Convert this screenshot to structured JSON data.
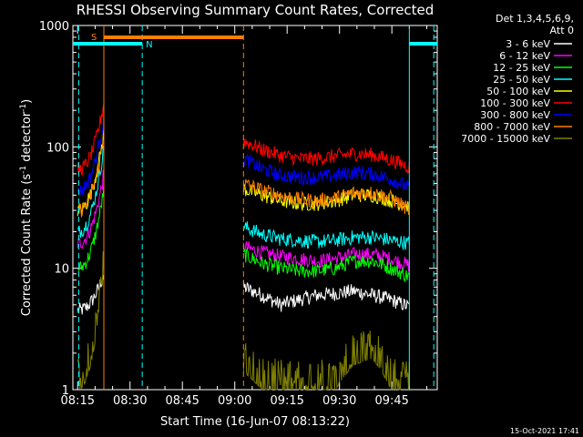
{
  "chart_data": {
    "type": "line",
    "title": "RHESSI Observing Summary Count Rates, Corrected",
    "xlabel": "Start Time (16-Jun-07 08:13:22)",
    "ylabel_main": "Corrected Count Rate (s",
    "ylabel_sup1": "-1",
    "ylabel_mid": " detector",
    "ylabel_sup2": "-1",
    "ylabel_end": ")",
    "yscale": "log",
    "ylim": [
      1,
      1000
    ],
    "xlim_minutes": [
      -1.37,
      103
    ],
    "xtick_labels": [
      "08:15",
      "08:30",
      "08:45",
      "09:00",
      "09:15",
      "09:30",
      "09:45"
    ],
    "xtick_minutes": [
      0,
      15,
      30,
      45,
      60,
      75,
      90
    ],
    "ytick_labels": [
      "1",
      "10",
      "100",
      "1000"
    ],
    "ytick_values": [
      1,
      10,
      100,
      1000
    ],
    "legend_header": [
      "Det 1,3,4,5,6,9,",
      "Att 0"
    ],
    "legend_position": "right",
    "timestamp": "15-Oct-2021 17:41",
    "segments_minutes": [
      [
        0,
        7.5
      ],
      [
        47.5,
        95
      ]
    ],
    "series": [
      {
        "name": "3 - 6 keV",
        "color": "#ffffff",
        "seg1": [
          4.5,
          5,
          6,
          9
        ],
        "seg2": [
          7,
          6,
          5,
          5.5,
          6,
          6.2,
          6.5,
          6,
          5.5,
          4.8
        ]
      },
      {
        "name": "6 - 12 keV",
        "color": "#ff00ff",
        "seg1": [
          16,
          17,
          25,
          60
        ],
        "seg2": [
          15,
          13.5,
          12.5,
          12,
          11.5,
          12,
          13,
          13,
          12,
          10.5
        ]
      },
      {
        "name": "12 - 25 keV",
        "color": "#00ff00",
        "seg1": [
          10,
          11,
          16,
          45
        ],
        "seg2": [
          13,
          11,
          10,
          9.5,
          9.5,
          10,
          11.5,
          11.5,
          10,
          8.5
        ]
      },
      {
        "name": "25 - 50 keV",
        "color": "#00ffff",
        "seg1": [
          20,
          22,
          40,
          100
        ],
        "seg2": [
          22,
          19,
          17.5,
          17,
          16.5,
          17,
          18,
          18,
          17,
          16
        ]
      },
      {
        "name": "50 - 100 keV",
        "color": "#ffff00",
        "seg1": [
          30,
          32,
          55,
          130
        ],
        "seg2": [
          45,
          40,
          36,
          34,
          34,
          36,
          40,
          40,
          36,
          32
        ]
      },
      {
        "name": "100 - 300 keV",
        "color": "#ff0000",
        "seg1": [
          65,
          68,
          100,
          230
        ],
        "seg2": [
          112,
          95,
          85,
          80,
          80,
          84,
          88,
          86,
          78,
          68
        ]
      },
      {
        "name": "300 - 800 keV",
        "color": "#0000ff",
        "seg1": [
          43,
          45,
          70,
          175
        ],
        "seg2": [
          80,
          66,
          58,
          56,
          56,
          58,
          62,
          60,
          54,
          46
        ]
      },
      {
        "name": "800 - 7000 keV",
        "color": "#ff8000",
        "seg1": [
          30,
          31,
          50,
          120
        ],
        "seg2": [
          50,
          44,
          40,
          37,
          36,
          38,
          42,
          42,
          38,
          30
        ]
      },
      {
        "name": "7000 - 15000 keV",
        "color": "#808000",
        "seg1": [
          1,
          1.8,
          4,
          9
        ],
        "seg2": [
          1.4,
          1,
          1,
          1,
          1,
          1,
          1.6,
          1.8,
          1,
          1
        ]
      }
    ],
    "annotations": [
      {
        "text": "S",
        "color": "#ff8000"
      },
      {
        "text": "N",
        "color": "#00ffff"
      }
    ],
    "bars": [
      {
        "label": "S",
        "color": "#ff8000",
        "x_minutes": [
          7.5,
          47.5
        ],
        "y": 800
      },
      {
        "label": "N",
        "color": "#00ffff",
        "x_minutes": [
          -1.37,
          18.5
        ],
        "y": 700
      },
      {
        "label": "N",
        "color": "#00ffff",
        "x_minutes": [
          95,
          103
        ],
        "y": 700
      }
    ],
    "vlines": [
      {
        "x_minutes": 7.5,
        "color": "#ff8000",
        "style": "solid"
      },
      {
        "x_minutes": 47.5,
        "color": "#ff8000",
        "style": "dashed"
      },
      {
        "x_minutes": 18.5,
        "color": "#00ffff",
        "style": "dashed"
      },
      {
        "x_minutes": 95,
        "color": "#00ffff",
        "style": "solid"
      },
      {
        "x_minutes": 0.3,
        "color": "#00ffff",
        "style": "dashed"
      },
      {
        "x_minutes": 102,
        "color": "#00ffff",
        "style": "dashed"
      }
    ]
  }
}
